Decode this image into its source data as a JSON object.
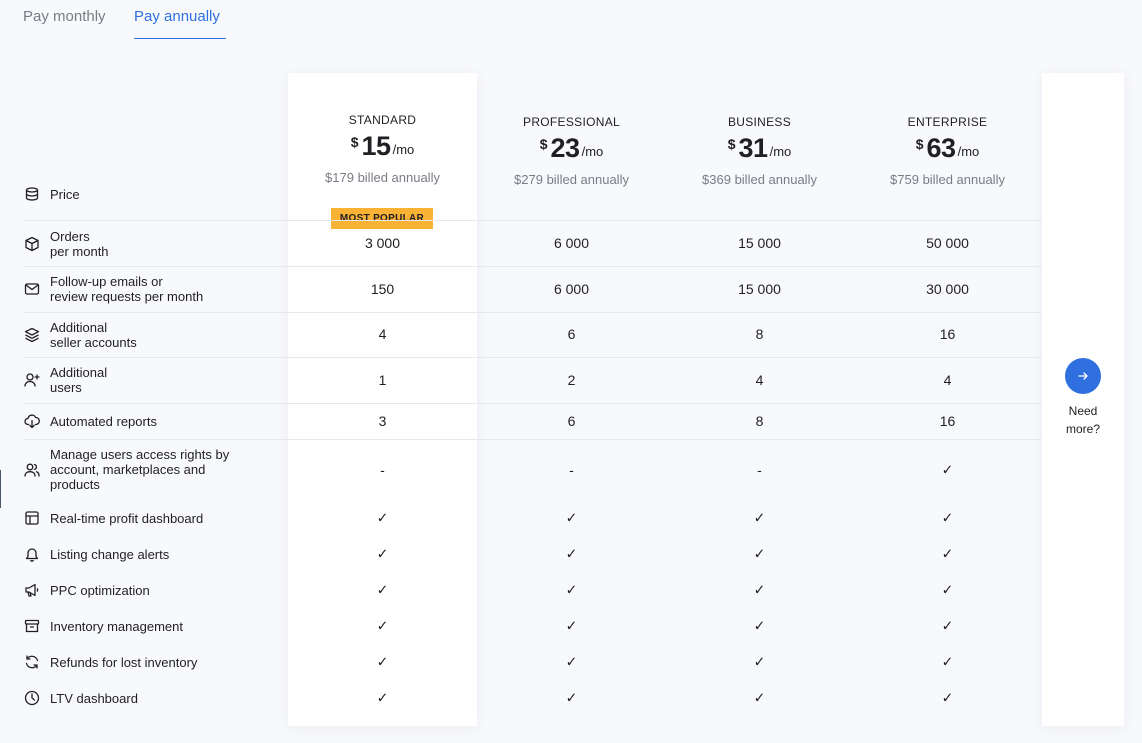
{
  "tabs": [
    {
      "label": "Pay monthly",
      "active": false
    },
    {
      "label": "Pay annually",
      "active": true
    }
  ],
  "plans": [
    {
      "name": "STANDARD",
      "currency": "$",
      "amount": "15",
      "per": "/mo",
      "billed": "$179 billed annually"
    },
    {
      "name": "PROFESSIONAL",
      "currency": "$",
      "amount": "23",
      "per": "/mo",
      "billed": "$279 billed annually"
    },
    {
      "name": "BUSINESS",
      "currency": "$",
      "amount": "31",
      "per": "/mo",
      "billed": "$369 billed annually"
    },
    {
      "name": "ENTERPRISE",
      "currency": "$",
      "amount": "63",
      "per": "/mo",
      "billed": "$759 billed annually"
    }
  ],
  "badge": "MOST POPULAR",
  "price_label": "Price",
  "rows": [
    {
      "icon": "box-icon",
      "label": "Orders\nper month",
      "values": [
        "3 000",
        "6 000",
        "15 000",
        "50 000"
      ]
    },
    {
      "icon": "mail-icon",
      "label": "Follow-up emails or\nreview requests per month",
      "values": [
        "150",
        "6 000",
        "15 000",
        "30 000"
      ]
    },
    {
      "icon": "layers-icon",
      "label": "Additional\nseller accounts",
      "values": [
        "4",
        "6",
        "8",
        "16"
      ]
    },
    {
      "icon": "user-plus-icon",
      "label": "Additional\nusers",
      "values": [
        "1",
        "2",
        "4",
        "4"
      ]
    },
    {
      "icon": "cloud-download-icon",
      "label": "Automated reports",
      "values": [
        "3",
        "6",
        "8",
        "16"
      ]
    },
    {
      "icon": "users-icon",
      "label": "Manage users access rights by\naccount, marketplaces and\nproducts",
      "values": [
        "-",
        "-",
        "-",
        "✓"
      ]
    },
    {
      "icon": "dashboard-icon",
      "label": "Real-time profit dashboard",
      "values": [
        "✓",
        "✓",
        "✓",
        "✓"
      ]
    },
    {
      "icon": "bell-icon",
      "label": "Listing change alerts",
      "values": [
        "✓",
        "✓",
        "✓",
        "✓"
      ]
    },
    {
      "icon": "megaphone-icon",
      "label": "PPC optimization",
      "values": [
        "✓",
        "✓",
        "✓",
        "✓"
      ]
    },
    {
      "icon": "archive-icon",
      "label": "Inventory management",
      "values": [
        "✓",
        "✓",
        "✓",
        "✓"
      ]
    },
    {
      "icon": "refresh-icon",
      "label": "Refunds for lost inventory",
      "values": [
        "✓",
        "✓",
        "✓",
        "✓"
      ]
    },
    {
      "icon": "clock-icon",
      "label": "LTV dashboard",
      "values": [
        "✓",
        "✓",
        "✓",
        "✓"
      ]
    }
  ],
  "need_more": "Need\nmore?",
  "colors": {
    "accent": "#2f6fe0",
    "badge": "#f9b233"
  }
}
